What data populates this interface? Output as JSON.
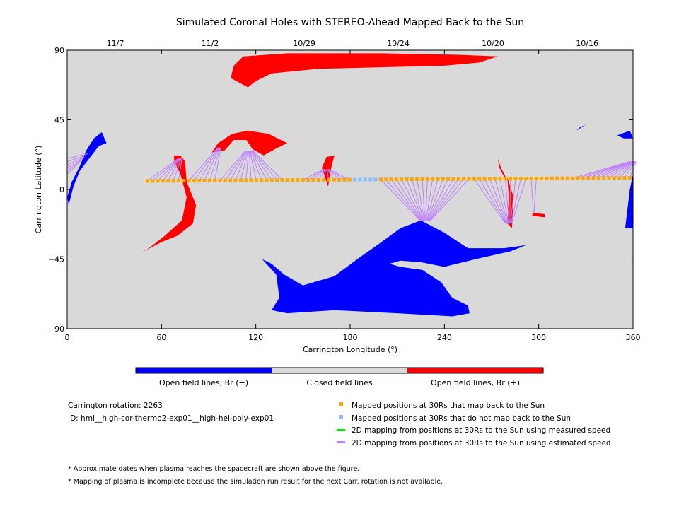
{
  "chart_data": {
    "type": "scatter",
    "title": "Simulated Coronal Holes with STEREO-Ahead Mapped Back to the Sun",
    "xlabel": "Carrington Longitude (°)",
    "ylabel": "Carrington Latitude (°)",
    "xlim": [
      0,
      360
    ],
    "ylim": [
      -90,
      90
    ],
    "xticks": [
      "0",
      "60",
      "120",
      "180",
      "240",
      "300",
      "360"
    ],
    "yticks": [
      "90",
      "45",
      "0",
      "-45",
      "-90"
    ],
    "top_axis": [
      {
        "label": "11/7",
        "lon": 30.6
      },
      {
        "label": "11/2",
        "lon": 90.9
      },
      {
        "label": "10/29",
        "lon": 150.8
      },
      {
        "label": "10/24",
        "lon": 210.6
      },
      {
        "label": "10/20",
        "lon": 270.9
      },
      {
        "label": "10/16",
        "lon": 330.8
      }
    ],
    "colors": {
      "open_neg": "#0000ff",
      "closed": "#d9d9d9",
      "open_pos": "#ff0000",
      "mapped": "#ffa500",
      "unmapped": "#87bfff",
      "measured": "#00ee00",
      "estimated": "#bf80ff"
    },
    "coronal_holes": [
      {
        "polarity": "+",
        "points": [
          [
            115,
            66
          ],
          [
            104,
            72
          ],
          [
            106,
            80
          ],
          [
            112,
            86
          ],
          [
            140,
            88
          ],
          [
            200,
            88
          ],
          [
            250,
            87
          ],
          [
            274,
            86
          ],
          [
            262,
            82
          ],
          [
            240,
            80
          ],
          [
            200,
            79
          ],
          [
            160,
            78
          ],
          [
            130,
            75
          ],
          [
            120,
            70
          ]
        ]
      },
      {
        "polarity": "+",
        "points": [
          [
            92,
            24
          ],
          [
            96,
            30
          ],
          [
            105,
            36
          ],
          [
            115,
            38
          ],
          [
            128,
            36
          ],
          [
            140,
            30
          ],
          [
            132,
            26
          ],
          [
            125,
            22
          ],
          [
            118,
            26
          ],
          [
            114,
            32
          ],
          [
            106,
            32
          ],
          [
            100,
            25
          ]
        ]
      },
      {
        "polarity": "+",
        "points": [
          [
            68,
            22
          ],
          [
            72,
            22
          ],
          [
            75,
            18
          ],
          [
            76,
            5
          ],
          [
            82,
            -10
          ],
          [
            80,
            -22
          ],
          [
            70,
            -30
          ],
          [
            60,
            -34
          ],
          [
            47,
            -41
          ],
          [
            52,
            -38
          ],
          [
            62,
            -30
          ],
          [
            73,
            -20
          ],
          [
            76,
            -5
          ],
          [
            72,
            10
          ],
          [
            68,
            18
          ]
        ]
      },
      {
        "polarity": "+",
        "points": [
          [
            162,
            14
          ],
          [
            165,
            21
          ],
          [
            170,
            22
          ],
          [
            168,
            14
          ],
          [
            166,
            2
          ],
          [
            164,
            8
          ]
        ]
      },
      {
        "polarity": "+",
        "points": [
          [
            274,
            20
          ],
          [
            276,
            14
          ],
          [
            280,
            6
          ],
          [
            278,
            8
          ],
          [
            275,
            14
          ]
        ]
      },
      {
        "polarity": "+",
        "points": [
          [
            280,
            8
          ],
          [
            284,
            -5
          ],
          [
            283,
            -25
          ],
          [
            280,
            -22
          ],
          [
            281,
            -5
          ]
        ]
      },
      {
        "polarity": "+",
        "points": [
          [
            296,
            -15
          ],
          [
            304,
            -16
          ],
          [
            304,
            -18
          ],
          [
            296,
            -17
          ]
        ]
      },
      {
        "polarity": "-",
        "points": [
          [
            124,
            -45
          ],
          [
            133,
            -55
          ],
          [
            135,
            -70
          ],
          [
            130,
            -78
          ],
          [
            140,
            -80
          ],
          [
            170,
            -78
          ],
          [
            210,
            -80
          ],
          [
            245,
            -82
          ],
          [
            256,
            -80
          ],
          [
            255,
            -75
          ],
          [
            245,
            -70
          ],
          [
            238,
            -60
          ],
          [
            226,
            -52
          ],
          [
            212,
            -50
          ],
          [
            205,
            -48
          ],
          [
            212,
            -46
          ],
          [
            225,
            -47
          ],
          [
            240,
            -50
          ],
          [
            260,
            -45
          ],
          [
            282,
            -40
          ],
          [
            292,
            -36
          ],
          [
            278,
            -38
          ],
          [
            255,
            -38
          ],
          [
            240,
            -28
          ],
          [
            225,
            -20
          ],
          [
            212,
            -25
          ],
          [
            200,
            -34
          ],
          [
            186,
            -44
          ],
          [
            170,
            -56
          ],
          [
            150,
            -62
          ],
          [
            138,
            -55
          ],
          [
            130,
            -48
          ]
        ]
      },
      {
        "polarity": "-",
        "points": [
          [
            0,
            -5
          ],
          [
            3,
            5
          ],
          [
            8,
            15
          ],
          [
            12,
            25
          ],
          [
            17,
            33
          ],
          [
            22,
            37
          ],
          [
            25,
            30
          ],
          [
            20,
            28
          ],
          [
            14,
            20
          ],
          [
            8,
            12
          ],
          [
            4,
            2
          ],
          [
            1,
            -10
          ]
        ]
      },
      {
        "polarity": "-",
        "points": [
          [
            355,
            -25
          ],
          [
            358,
            0
          ],
          [
            360,
            10
          ],
          [
            360,
            -25
          ]
        ]
      },
      {
        "polarity": "-",
        "points": [
          [
            324,
            38
          ],
          [
            330,
            42
          ],
          [
            326,
            40
          ]
        ]
      },
      {
        "polarity": "-",
        "points": [
          [
            350,
            35
          ],
          [
            358,
            38
          ],
          [
            360,
            33
          ],
          [
            354,
            33
          ]
        ]
      }
    ],
    "mapped_positions": {
      "lon_start": 51,
      "lon_end": 359,
      "step": 3.3,
      "lat_start": 5.5,
      "lat_end": 7.5,
      "unmapped_range": [
        182,
        198
      ]
    },
    "mapping_clusters": [
      {
        "from": [
          51,
          73
        ],
        "to": [
          72,
          20
        ]
      },
      {
        "from": [
          75,
          94
        ],
        "to": [
          97,
          27
        ]
      },
      {
        "from": [
          97,
          140
        ],
        "to": [
          116,
          25
        ]
      },
      {
        "from": [
          150,
          182
        ],
        "to": [
          165,
          13
        ]
      },
      {
        "from": [
          198,
          256
        ],
        "to": [
          228,
          -20
        ]
      },
      {
        "from": [
          258,
          292
        ],
        "to": [
          281,
          -22
        ]
      },
      {
        "from": [
          293,
          300
        ],
        "to": [
          297,
          -15
        ]
      },
      {
        "from": [
          320,
          359
        ],
        "to": [
          360,
          18
        ]
      }
    ],
    "colorbar": {
      "labels": [
        "Open field lines, Br (−)",
        "Closed field lines",
        "Open field lines, Br (+)"
      ]
    },
    "info": {
      "rotation": "Carrington rotation: 2263",
      "id": "ID: hmi__high-cor-thermo2-exp01__high-hel-poly-exp01"
    },
    "legend": [
      "Mapped positions at 30Rs that map back to the Sun",
      "Mapped positions at 30Rs that do not map back to the Sun",
      "2D mapping from positions at 30Rs to the Sun using measured speed",
      "2D mapping from positions at 30Rs to the Sun using estimated speed"
    ],
    "notes": [
      "* Approximate dates when plasma reaches the spacecraft are shown above the figure.",
      "* Mapping of plasma is incomplete because the simulation run result for the next Carr. rotation is not available."
    ]
  }
}
